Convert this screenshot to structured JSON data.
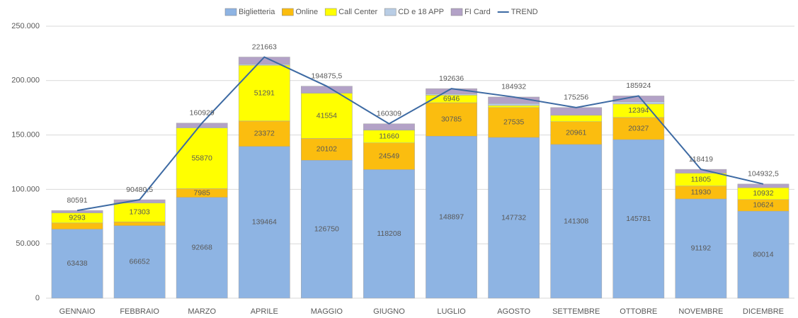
{
  "chart_data": {
    "type": "bar",
    "stacked": true,
    "categories": [
      "GENNAIO",
      "FEBBRAIO",
      "MARZO",
      "APRILE",
      "MAGGIO",
      "GIUGNO",
      "LUGLIO",
      "AGOSTO",
      "SETTEMBRE",
      "OTTOBRE",
      "NOVEMBRE",
      "DICEMBRE"
    ],
    "series": [
      {
        "name": "Biglietteria",
        "color": "#8eb4e3",
        "values": [
          63438,
          66652,
          92668,
          139464,
          126750,
          118208,
          148897,
          147732,
          141308,
          145781,
          91192,
          80014
        ]
      },
      {
        "name": "Online",
        "color": "#fbbd0f",
        "values": [
          5690,
          3496,
          7985,
          23372,
          20102,
          24549,
          30785,
          27535,
          20961,
          20327,
          11930,
          10624
        ]
      },
      {
        "name": "Call Center",
        "color": "#ffff00",
        "values": [
          9293,
          17303,
          55870,
          51291,
          41554,
          11660,
          6946,
          1838,
          5829,
          12394,
          11805,
          10932
        ]
      },
      {
        "name": "CD e 18 APP",
        "color": "#b9cde5",
        "values": [
          300,
          500,
          500,
          1000,
          240,
          372,
          1000,
          1757,
          78,
          2070,
          0,
          0
        ]
      },
      {
        "name": "FI Card",
        "color": "#b3a2c7",
        "values": [
          1870,
          2529.5,
          3906,
          6536,
          6229.5,
          5520,
          5008,
          6070,
          7080,
          5352,
          3492,
          3362.5
        ]
      },
      {
        "name": "TREND",
        "type": "line",
        "color": "#3d6aa3",
        "values": [
          80591,
          90480.5,
          160929,
          221663,
          194875.5,
          160309,
          192636,
          184932,
          175256,
          185924,
          118419,
          104932.5
        ],
        "value_labels": [
          "80591",
          "90480,5",
          "160929",
          "221663",
          "194875,5",
          "160309",
          "192636",
          "184932",
          "175256",
          "185924",
          "118419",
          "104932,5"
        ]
      }
    ],
    "ylim": [
      0,
      250000
    ],
    "yticks": [
      0,
      {
        "value": 50000,
        "label": "50.000"
      },
      {
        "value": 100000,
        "label": "100.000"
      },
      {
        "value": 150000,
        "label": "150.000"
      },
      {
        "value": 200000,
        "label": "200.000"
      },
      {
        "value": 250000,
        "label": "250.000"
      }
    ],
    "grid": true,
    "legend": "top"
  }
}
